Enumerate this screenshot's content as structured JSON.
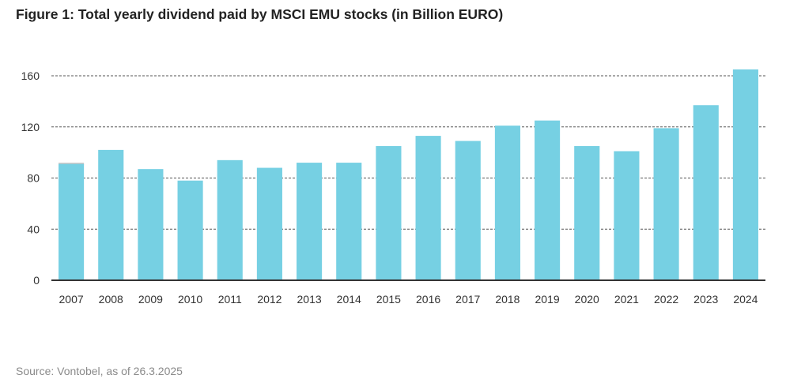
{
  "chart_data": {
    "type": "bar",
    "title": "Figure 1: Total yearly dividend paid by MSCI EMU stocks (in Billion EURO)",
    "xlabel": "",
    "ylabel": "",
    "ylim": [
      0,
      160
    ],
    "yticks": [
      0,
      40,
      80,
      120,
      160
    ],
    "ytick_labels": [
      "0",
      "40",
      "80",
      "120",
      "160"
    ],
    "grid": true,
    "categories": [
      "2007",
      "2008",
      "2009",
      "2010",
      "2011",
      "2012",
      "2013",
      "2014",
      "2015",
      "2016",
      "2017",
      "2018",
      "2019",
      "2020",
      "2021",
      "2022",
      "2023",
      "2024"
    ],
    "values": [
      91,
      102,
      87,
      78,
      94,
      88,
      92,
      92,
      105,
      113,
      109,
      121,
      125,
      105,
      101,
      119,
      137,
      165
    ],
    "extra_cap": {
      "category": "2007",
      "value": 92
    },
    "source": "Source: Vontobel, as of 26.3.2025",
    "colors": {
      "bar": "#76d0e3",
      "cap": "#c8c8c8",
      "grid": "#555555",
      "axis": "#333333"
    }
  }
}
